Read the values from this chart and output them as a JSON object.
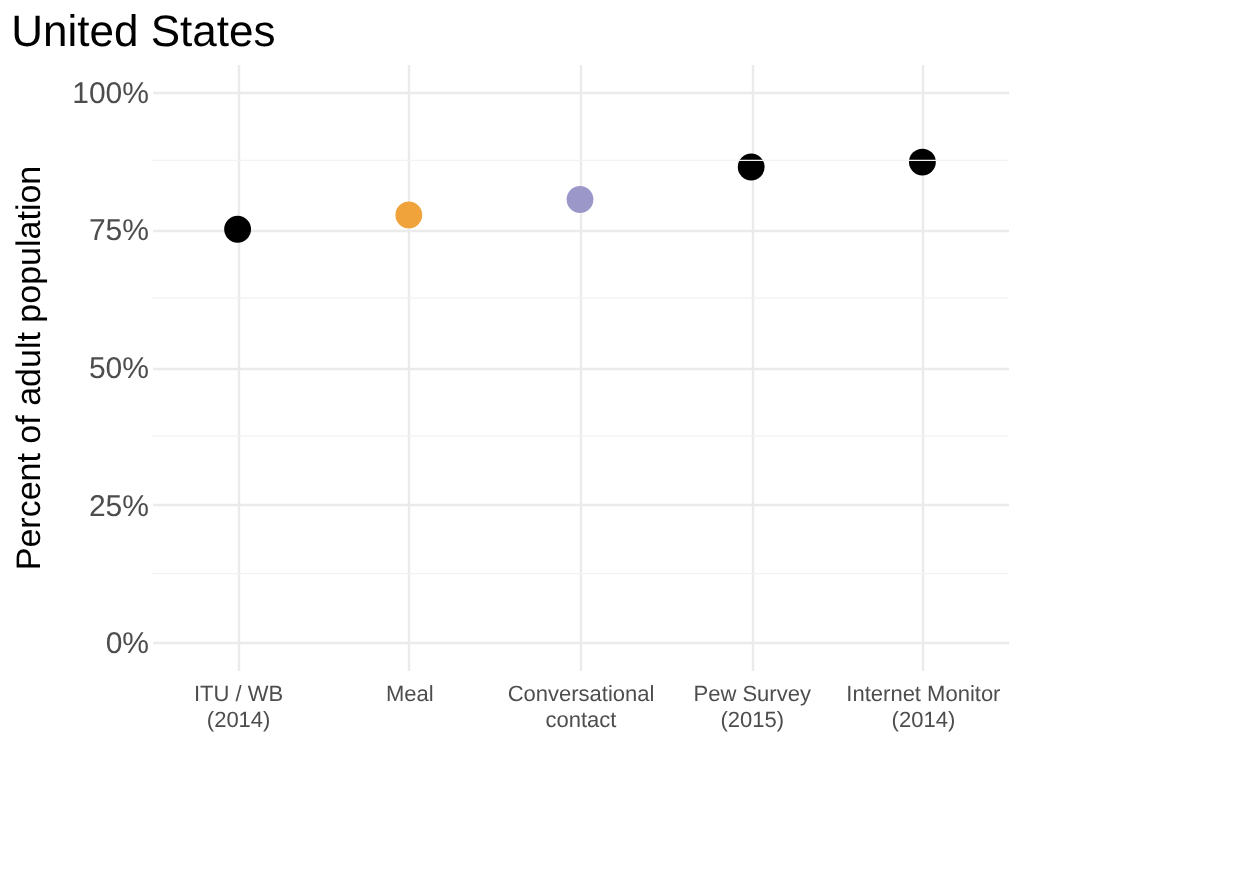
{
  "chart_data": {
    "type": "scatter",
    "title": "United States",
    "ylabel": "Percent of adult population",
    "categories": [
      "ITU / WB (2014)",
      "Meal",
      "Conversational contact",
      "Pew Survey (2015)",
      "Internet Monitor (2014)"
    ],
    "values": [
      75,
      77.6,
      80.4,
      86.3,
      87.2
    ],
    "colors": [
      "#000000",
      "#f0a33a",
      "#9b98c9",
      "#000000",
      "#000000"
    ],
    "ylim": [
      -5,
      105
    ],
    "yticks": [
      {
        "value": 0,
        "label": "0%"
      },
      {
        "value": 25,
        "label": "25%"
      },
      {
        "value": 50,
        "label": "50%"
      },
      {
        "value": 75,
        "label": "75%"
      },
      {
        "value": 100,
        "label": "100%"
      }
    ],
    "grid": true,
    "marker": "circle"
  }
}
